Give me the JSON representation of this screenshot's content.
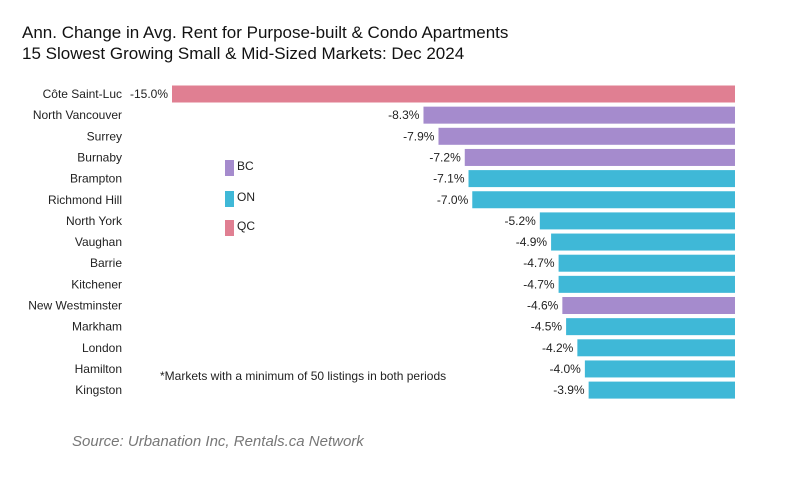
{
  "title_line1": "Ann. Change in Avg. Rent for Purpose-built & Condo Apartments",
  "title_line2": "15 Slowest Growing Small & Mid-Sized Markets: Dec 2024",
  "footnote": "*Markets with a minimum of 50 listings in both periods",
  "source": "Source: Urbanation Inc, Rentals.ca Network",
  "colors": {
    "BC": "#a58bcd",
    "ON": "#3fb8d7",
    "QC": "#e07f92"
  },
  "legend": [
    {
      "key": "BC",
      "label": "BC"
    },
    {
      "key": "ON",
      "label": "ON"
    },
    {
      "key": "QC",
      "label": "QC"
    }
  ],
  "chart_data": {
    "type": "bar",
    "orientation": "horizontal",
    "categories": [
      "Côte Saint-Luc",
      "North Vancouver",
      "Surrey",
      "Burnaby",
      "Brampton",
      "Richmond Hill",
      "North York",
      "Vaughan",
      "Barrie",
      "Kitchener",
      "New Westminster",
      "Markham",
      "London",
      "Hamilton",
      "Kingston"
    ],
    "values": [
      -15.0,
      -8.3,
      -7.9,
      -7.2,
      -7.1,
      -7.0,
      -5.2,
      -4.9,
      -4.7,
      -4.7,
      -4.6,
      -4.5,
      -4.2,
      -4.0,
      -3.9
    ],
    "labels": [
      "-15.0%",
      "-8.3%",
      "-7.9%",
      "-7.2%",
      "-7.1%",
      "-7.0%",
      "-5.2%",
      "-4.9%",
      "-4.7%",
      "-4.7%",
      "-4.6%",
      "-4.5%",
      "-4.2%",
      "-4.0%",
      "-3.9%"
    ],
    "groups": [
      "QC",
      "BC",
      "BC",
      "BC",
      "ON",
      "ON",
      "ON",
      "ON",
      "ON",
      "ON",
      "BC",
      "ON",
      "ON",
      "ON",
      "ON"
    ],
    "xlim": [
      -15.0,
      0
    ],
    "grid": false,
    "legend_position": "left-middle"
  }
}
